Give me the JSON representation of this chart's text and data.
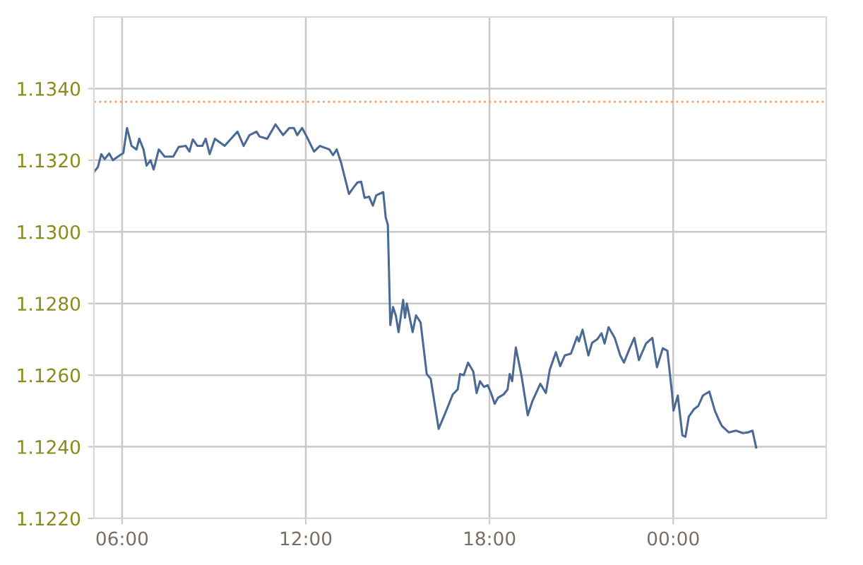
{
  "chart_data": {
    "type": "line",
    "x": [
      5.09,
      5.21,
      5.32,
      5.43,
      5.58,
      5.7,
      5.93,
      6.04,
      6.16,
      6.31,
      6.47,
      6.56,
      6.7,
      6.8,
      6.93,
      7.03,
      7.2,
      7.39,
      7.67,
      7.85,
      8.08,
      8.2,
      8.31,
      8.46,
      8.62,
      8.73,
      8.86,
      9.03,
      9.35,
      9.77,
      9.97,
      10.16,
      10.39,
      10.49,
      10.74,
      11.01,
      11.26,
      11.46,
      11.61,
      11.72,
      11.88,
      12.03,
      12.27,
      12.46,
      12.77,
      12.89,
      13.01,
      13.15,
      13.41,
      13.56,
      13.69,
      13.81,
      13.92,
      14.07,
      14.19,
      14.3,
      14.53,
      14.61,
      14.68,
      14.76,
      14.85,
      14.94,
      15.03,
      15.18,
      15.24,
      15.3,
      15.49,
      15.6,
      15.75,
      15.95,
      16.08,
      16.34,
      16.57,
      16.8,
      16.96,
      17.04,
      17.16,
      17.3,
      17.47,
      17.58,
      17.69,
      17.82,
      17.94,
      18.05,
      18.17,
      18.28,
      18.46,
      18.59,
      18.66,
      18.74,
      18.86,
      19.05,
      19.25,
      19.4,
      19.66,
      19.84,
      19.97,
      20.17,
      20.31,
      20.46,
      20.66,
      20.86,
      20.92,
      21.04,
      21.23,
      21.35,
      21.53,
      21.66,
      21.76,
      21.89,
      22.09,
      22.27,
      22.39,
      22.58,
      22.73,
      22.88,
      23.11,
      23.32,
      23.47,
      23.66,
      23.81,
      23.97,
      24.01,
      24.15,
      24.3,
      24.4,
      24.51,
      24.67,
      24.82,
      24.97,
      25.18,
      25.36,
      25.48,
      25.59,
      25.82,
      26.05,
      26.28,
      26.44,
      26.59,
      26.71
    ],
    "series": [
      {
        "color": "#4a6a95",
        "values": [
          1.13168,
          1.13181,
          1.13217,
          1.13203,
          1.13219,
          1.132,
          1.13214,
          1.1322,
          1.1329,
          1.1324,
          1.1323,
          1.1326,
          1.1323,
          1.13185,
          1.132,
          1.13174,
          1.1323,
          1.1321,
          1.1321,
          1.13237,
          1.1324,
          1.13224,
          1.13258,
          1.1324,
          1.1324,
          1.1326,
          1.13217,
          1.1326,
          1.1324,
          1.1328,
          1.1324,
          1.1327,
          1.1328,
          1.13266,
          1.1326,
          1.133,
          1.1327,
          1.1329,
          1.1329,
          1.1327,
          1.1329,
          1.13266,
          1.13224,
          1.1324,
          1.1323,
          1.13214,
          1.1323,
          1.13194,
          1.13106,
          1.13124,
          1.13138,
          1.1314,
          1.13095,
          1.13098,
          1.13073,
          1.13102,
          1.13111,
          1.1304,
          1.1302,
          1.1274,
          1.1279,
          1.12767,
          1.1272,
          1.1281,
          1.1276,
          1.128,
          1.1272,
          1.12767,
          1.12747,
          1.12603,
          1.1259,
          1.1245,
          1.12497,
          1.12546,
          1.1256,
          1.12603,
          1.126,
          1.12635,
          1.1261,
          1.1255,
          1.12583,
          1.12567,
          1.12572,
          1.1255,
          1.1252,
          1.12537,
          1.12546,
          1.1256,
          1.12603,
          1.12583,
          1.12677,
          1.12596,
          1.12488,
          1.12527,
          1.12576,
          1.1255,
          1.12615,
          1.12664,
          1.12625,
          1.12655,
          1.1266,
          1.12707,
          1.12694,
          1.12727,
          1.12655,
          1.1269,
          1.12701,
          1.12717,
          1.12688,
          1.12734,
          1.12704,
          1.12655,
          1.12635,
          1.12675,
          1.12704,
          1.12642,
          1.12688,
          1.12704,
          1.12622,
          1.12675,
          1.12668,
          1.12543,
          1.12501,
          1.12543,
          1.12432,
          1.12428,
          1.12484,
          1.12504,
          1.12514,
          1.12543,
          1.12554,
          1.12501,
          1.12477,
          1.12458,
          1.1244,
          1.12445,
          1.12438,
          1.1244,
          1.12445,
          1.12398
        ]
      }
    ],
    "xlim": [
      5.08,
      29.0
    ],
    "xticks": [
      {
        "value": 6,
        "label": "06:00"
      },
      {
        "value": 12,
        "label": "12:00"
      },
      {
        "value": 18,
        "label": "18:00"
      },
      {
        "value": 24,
        "label": "00:00"
      }
    ],
    "ylim": [
      1.122,
      1.136
    ],
    "yticks": [
      {
        "value": 1.122,
        "label": "1.1220"
      },
      {
        "value": 1.124,
        "label": "1.1240"
      },
      {
        "value": 1.126,
        "label": "1.1260"
      },
      {
        "value": 1.128,
        "label": "1.1280"
      },
      {
        "value": 1.13,
        "label": "1.1300"
      },
      {
        "value": 1.132,
        "label": "1.1320"
      },
      {
        "value": 1.134,
        "label": "1.1340"
      }
    ],
    "ref_lines": [
      {
        "axis": "y",
        "value": 1.13363,
        "color": "#ff9966",
        "line_style": "dotted"
      }
    ],
    "grid": true,
    "legend": false,
    "marker": "none",
    "line_style": "solid"
  }
}
